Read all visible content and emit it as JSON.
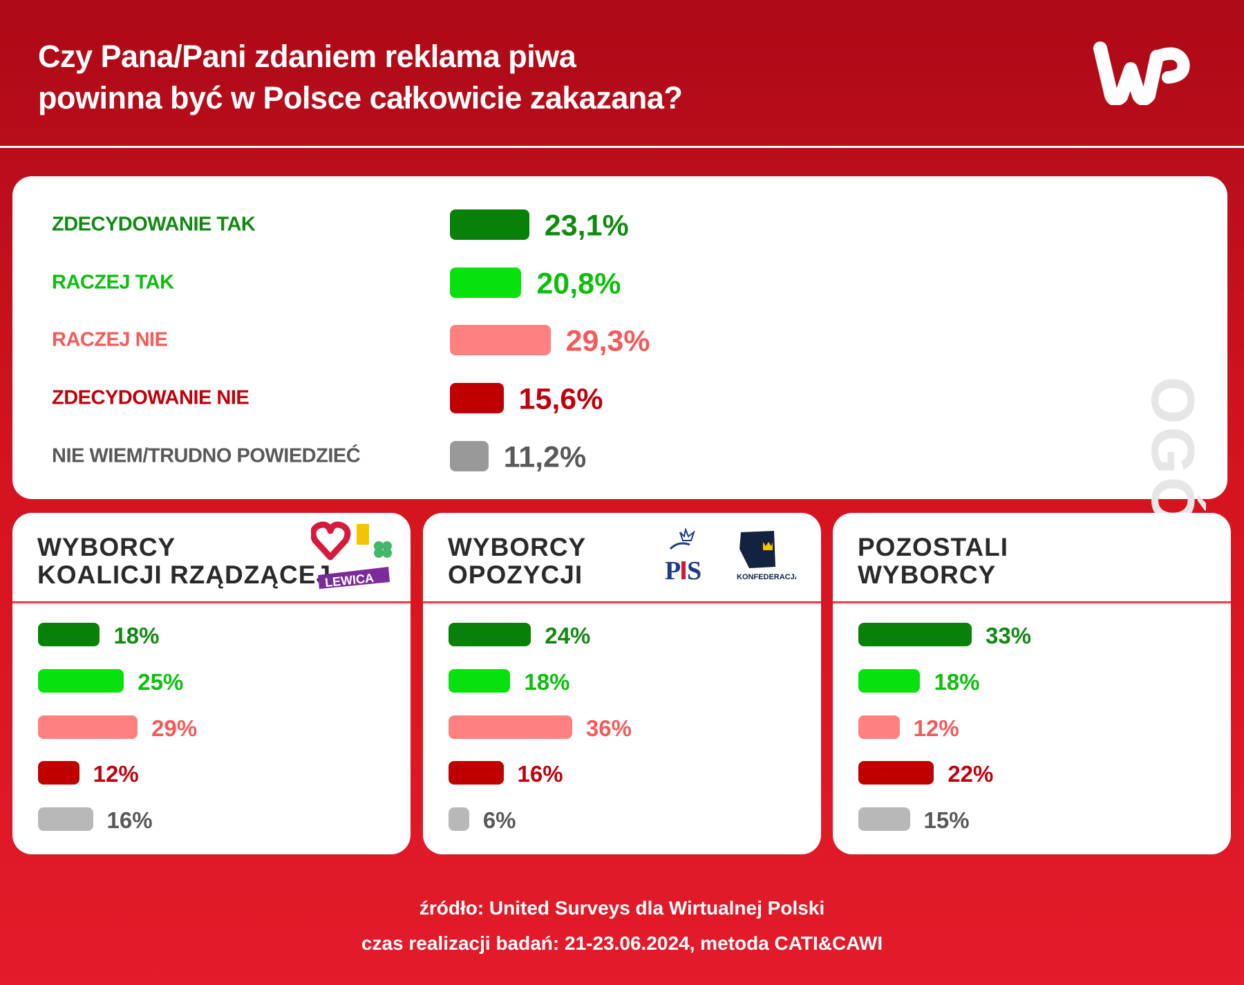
{
  "header": {
    "title_line1": "Czy Pana/Pani zdaniem reklama piwa",
    "title_line2": "powinna być w Polsce całkowicie zakazana?",
    "logo": "WP"
  },
  "colors": {
    "zdecydowanie_tak": "#078107",
    "raczej_tak": "#07e20f",
    "raczej_nie": "#ff8080",
    "zdecydowanie_nie": "#c00000",
    "nie_wiem": "#999999",
    "nie_wiem_small": "#b8b8b8"
  },
  "chart_data": [
    {
      "type": "bar",
      "title": "OGÓŁEM",
      "categories": [
        "ZDECYDOWANIE TAK",
        "RACZEJ TAK",
        "RACZEJ NIE",
        "ZDECYDOWANIE NIE",
        "NIE WIEM/TRUDNO POWIEDZIEĆ"
      ],
      "values": [
        23.1,
        20.8,
        29.3,
        15.6,
        11.2
      ],
      "labels": [
        "23,1%",
        "20,8%",
        "29,3%",
        "15,6%",
        "11,2%"
      ]
    },
    {
      "type": "bar",
      "title_line1": "WYBORCY",
      "title_line2": "KOALICJI RZĄDZĄCEJ",
      "logos": [
        "KO heart",
        "2050",
        "PSL clover",
        "LEWICA"
      ],
      "values": [
        18,
        25,
        29,
        12,
        16
      ],
      "labels": [
        "18%",
        "25%",
        "29%",
        "12%",
        "16%"
      ]
    },
    {
      "type": "bar",
      "title_line1": "WYBORCY",
      "title_line2": "OPOZYCJI",
      "logos": [
        "PiS",
        "KONFEDERACJA"
      ],
      "values": [
        24,
        18,
        36,
        16,
        6
      ],
      "labels": [
        "24%",
        "18%",
        "36%",
        "16%",
        "6%"
      ]
    },
    {
      "type": "bar",
      "title_line1": "POZOSTALI",
      "title_line2": "WYBORCY",
      "values": [
        33,
        18,
        12,
        22,
        15
      ],
      "labels": [
        "33%",
        "18%",
        "12%",
        "22%",
        "15%"
      ]
    }
  ],
  "footer": {
    "source": "źródło: United Surveys dla Wirtualnej Polski",
    "method": "czas realizacji badań: 21-23.06.2024, metoda CATI&CAWI"
  }
}
